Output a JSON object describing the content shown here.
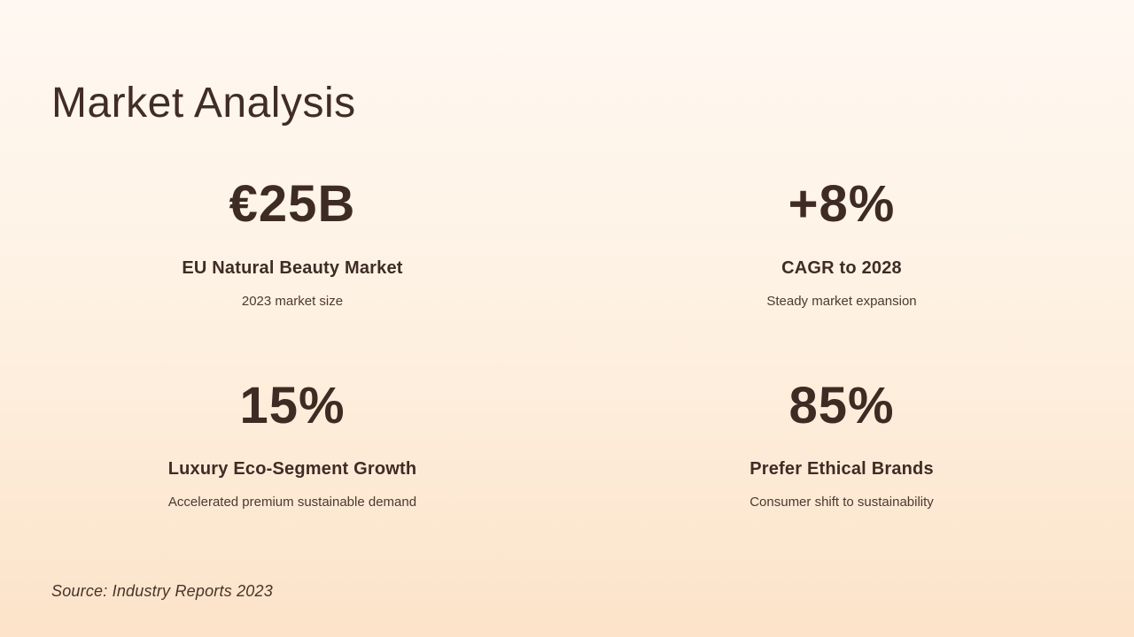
{
  "slide": {
    "title": "Market Analysis",
    "source": "Source: Industry Reports 2023",
    "colors": {
      "background_top": "#FFF8F2",
      "background_bottom": "#FCE3C9",
      "text_primary": "#3E2B23",
      "text_secondary": "#4C3930"
    },
    "stats": [
      {
        "value": "€25B",
        "label": "EU Natural Beauty Market",
        "description": "2023 market size"
      },
      {
        "value": "+8%",
        "label": "CAGR to 2028",
        "description": "Steady market expansion"
      },
      {
        "value": "15%",
        "label": "Luxury Eco-Segment Growth",
        "description": "Accelerated premium sustainable demand"
      },
      {
        "value": "85%",
        "label": "Prefer Ethical Brands",
        "description": "Consumer shift to sustainability"
      }
    ]
  }
}
